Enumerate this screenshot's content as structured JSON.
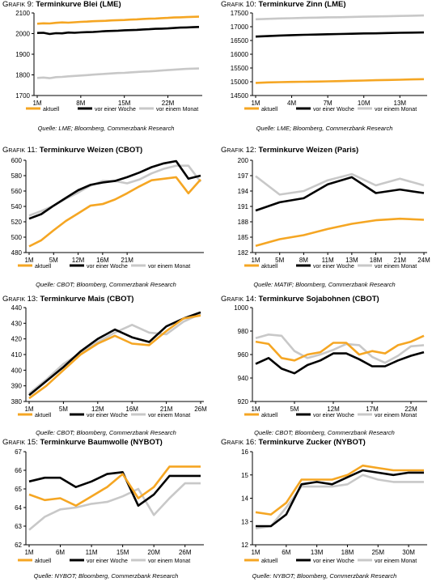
{
  "colors": {
    "aktuell": "#f5a623",
    "woche": "#000000",
    "monat": "#c8c8c8",
    "axis": "#000000"
  },
  "legend_labels": [
    "aktuell",
    "vor einer Woche",
    "vor einem Monat"
  ],
  "panels": [
    {
      "prefix": "Grafik 9:",
      "title": "Terminkurve Blei (LME)",
      "source": "Quelle: LME; Bloomberg, Commerzbank Research"
    },
    {
      "prefix": "Grafik 10:",
      "title": "Terminkurve Zinn (LME)",
      "source": "Quelle: LME; Bloomberg, Commerzbank Research"
    },
    {
      "prefix": "Grafik 11:",
      "title": "Terminkurve Weizen (CBOT)",
      "source": "Quelle: CBOT; Bloomberg, Commerzbank Research"
    },
    {
      "prefix": "Grafik 12:",
      "title": "Terminkurve Weizen (Paris)",
      "source": "Quelle: MATIF; Bloomberg, Commerzbank Research"
    },
    {
      "prefix": "Grafik 13:",
      "title": "Terminkurve Mais (CBOT)",
      "source": "Quelle: CBOT; Bloomberg, Commerzbank Research"
    },
    {
      "prefix": "Grafik 14:",
      "title": "Terminkurve Sojabohnen (CBOT)",
      "source": "Quelle: CBOT; Bloomberg, Commerzbank Research"
    },
    {
      "prefix": "Grafik 15:",
      "title": "Terminkurve Baumwolle (NYBOT)",
      "source": "Quelle: NYBOT; Bloomberg, Commerzbank Research"
    },
    {
      "prefix": "Grafik 16:",
      "title": "Terminkurve Zucker (NYBOT)",
      "source": "Quelle: NYBOT; Bloomberg, Commerzbank Research"
    }
  ],
  "chart_data": [
    {
      "type": "line",
      "title": "Terminkurve Blei (LME)",
      "ylim": [
        1700,
        2100
      ],
      "yticks": [
        1700,
        1800,
        1900,
        2000,
        2100
      ],
      "xticks": [
        "1M",
        "8M",
        "15M",
        "22M"
      ],
      "xtick_index": [
        0,
        7,
        14,
        21
      ],
      "series": [
        {
          "name": "aktuell",
          "values": [
            2048,
            2050,
            2049,
            2052,
            2054,
            2053,
            2055,
            2057,
            2058,
            2060,
            2061,
            2062,
            2064,
            2065,
            2066,
            2068,
            2069,
            2071,
            2072,
            2073,
            2075,
            2076,
            2078,
            2079,
            2080,
            2081,
            2082
          ]
        },
        {
          "name": "vor einer Woche",
          "values": [
            2003,
            2004,
            1998,
            2002,
            2001,
            2005,
            2004,
            2006,
            2007,
            2008,
            2010,
            2012,
            2013,
            2014,
            2016,
            2017,
            2018,
            2020,
            2021,
            2023,
            2024,
            2025,
            2027,
            2029,
            2030,
            2031,
            2032
          ]
        },
        {
          "name": "vor einem Monat",
          "values": [
            1785,
            1787,
            1784,
            1789,
            1790,
            1793,
            1795,
            1797,
            1799,
            1801,
            1803,
            1805,
            1807,
            1809,
            1810,
            1812,
            1814,
            1816,
            1817,
            1819,
            1821,
            1823,
            1825,
            1827,
            1829,
            1830,
            1831
          ]
        }
      ]
    },
    {
      "type": "line",
      "title": "Terminkurve Zinn (LME)",
      "ylim": [
        14500,
        17500
      ],
      "yticks": [
        14500,
        15000,
        15500,
        16000,
        16500,
        17000,
        17500
      ],
      "xticks": [
        "1M",
        "4M",
        "7M",
        "10M",
        "13M"
      ],
      "xtick_index": [
        0,
        3,
        6,
        9,
        12
      ],
      "series": [
        {
          "name": "aktuell",
          "values": [
            14960,
            14975,
            14985,
            14995,
            15000,
            15005,
            15015,
            15025,
            15035,
            15045,
            15055,
            15065,
            15075,
            15085,
            15095
          ]
        },
        {
          "name": "vor einer Woche",
          "values": [
            16640,
            16660,
            16680,
            16695,
            16705,
            16715,
            16725,
            16735,
            16745,
            16755,
            16760,
            16770,
            16780,
            16785,
            16790
          ]
        },
        {
          "name": "vor einem Monat",
          "values": [
            17270,
            17285,
            17300,
            17310,
            17320,
            17330,
            17340,
            17345,
            17355,
            17365,
            17375,
            17380,
            17390,
            17400,
            17410
          ]
        }
      ]
    },
    {
      "type": "line",
      "title": "Terminkurve Weizen (CBOT)",
      "ylim": [
        480,
        600
      ],
      "yticks": [
        480,
        500,
        520,
        540,
        560,
        580,
        600
      ],
      "xticks": [
        "1M",
        "5M",
        "12M",
        "16M",
        "21M"
      ],
      "xtick_index": [
        0,
        2,
        4,
        6,
        8
      ],
      "series": [
        {
          "name": "aktuell",
          "values": [
            488,
            496,
            509,
            521,
            531,
            541,
            543,
            549,
            557,
            566,
            574,
            576,
            578,
            557,
            575
          ]
        },
        {
          "name": "vor einer Woche",
          "values": [
            524,
            530,
            541,
            551,
            561,
            568,
            571,
            573,
            578,
            584,
            591,
            596,
            599,
            576,
            580
          ]
        },
        {
          "name": "vor einem Monat",
          "values": [
            528,
            534,
            541,
            550,
            558,
            567,
            573,
            573,
            570,
            575,
            583,
            589,
            593,
            593,
            572
          ]
        }
      ]
    },
    {
      "type": "line",
      "title": "Terminkurve Weizen (Paris)",
      "ylim": [
        182,
        200
      ],
      "yticks": [
        182,
        185,
        188,
        191,
        194,
        197,
        200
      ],
      "xticks": [
        "1M",
        "5M",
        "8M",
        "11M",
        "13M",
        "18M",
        "21M",
        "24M"
      ],
      "xtick_index": [
        0,
        1,
        2,
        3,
        4,
        5,
        6,
        7
      ],
      "series": [
        {
          "name": "aktuell",
          "values": [
            183.3,
            184.6,
            185.4,
            186.6,
            187.6,
            188.3,
            188.6,
            188.4
          ]
        },
        {
          "name": "vor einer Woche",
          "values": [
            190.2,
            191.8,
            192.6,
            195.3,
            196.7,
            193.6,
            194.3,
            193.6
          ]
        },
        {
          "name": "vor einem Monat",
          "values": [
            196.9,
            193.3,
            194.0,
            196.1,
            197.3,
            195.1,
            196.4,
            195.1
          ]
        }
      ]
    },
    {
      "type": "line",
      "title": "Terminkurve Mais (CBOT)",
      "ylim": [
        380,
        440
      ],
      "yticks": [
        380,
        390,
        400,
        410,
        420,
        430,
        440
      ],
      "xticks": [
        "1M",
        "5M",
        "12M",
        "16M",
        "21M",
        "26M"
      ],
      "xtick_index": [
        0,
        2,
        4,
        6,
        8,
        10
      ],
      "series": [
        {
          "name": "aktuell",
          "values": [
            382,
            390,
            400,
            410,
            417,
            422,
            417,
            416,
            425,
            433,
            435
          ]
        },
        {
          "name": "vor einer Woche",
          "values": [
            384,
            393,
            402,
            412,
            420,
            426,
            421,
            418,
            428,
            433,
            437
          ]
        },
        {
          "name": "vor einem Monat",
          "values": [
            385,
            394,
            404,
            411,
            418,
            424,
            429,
            424,
            423,
            431,
            436
          ]
        }
      ]
    },
    {
      "type": "line",
      "title": "Terminkurve Sojabohnen (CBOT)",
      "ylim": [
        920,
        1000
      ],
      "yticks": [
        920,
        940,
        960,
        980,
        1000
      ],
      "xticks": [
        "1M",
        "5M",
        "12M",
        "17M",
        "22M"
      ],
      "xtick_index": [
        0,
        3,
        6,
        9,
        12
      ],
      "series": [
        {
          "name": "aktuell",
          "values": [
            971,
            969,
            957,
            955,
            960,
            962,
            970,
            970,
            960,
            963,
            961,
            968,
            971,
            976
          ]
        },
        {
          "name": "vor einer Woche",
          "values": [
            952,
            957,
            948,
            944,
            951,
            955,
            961,
            961,
            956,
            950,
            950,
            955,
            959,
            962
          ]
        },
        {
          "name": "vor einem Monat",
          "values": [
            974,
            977,
            976,
            963,
            957,
            960,
            964,
            969,
            968,
            958,
            953,
            959,
            967,
            968
          ]
        }
      ]
    },
    {
      "type": "line",
      "title": "Terminkurve Baumwolle (NYBOT)",
      "ylim": [
        62,
        67
      ],
      "yticks": [
        62,
        63,
        64,
        65,
        66,
        67
      ],
      "xticks": [
        "1M",
        "6M",
        "11M",
        "15M",
        "20M",
        "26M"
      ],
      "xtick_index": [
        0,
        2,
        4,
        6,
        8,
        10
      ],
      "series": [
        {
          "name": "aktuell",
          "values": [
            64.7,
            64.4,
            64.5,
            64.1,
            64.6,
            65.1,
            65.8,
            64.5,
            65.1,
            66.2,
            66.2,
            66.2
          ]
        },
        {
          "name": "vor einer Woche",
          "values": [
            65.4,
            65.6,
            65.6,
            65.1,
            65.4,
            65.8,
            65.9,
            64.1,
            64.7,
            65.7,
            65.7,
            65.7
          ]
        },
        {
          "name": "vor einem Monat",
          "values": [
            62.8,
            63.5,
            63.9,
            64.0,
            64.2,
            64.3,
            64.6,
            65.0,
            63.6,
            64.5,
            65.3,
            65.3
          ]
        }
      ]
    },
    {
      "type": "line",
      "title": "Terminkurve Zucker (NYBOT)",
      "ylim": [
        12,
        16
      ],
      "yticks": [
        12,
        13,
        14,
        15,
        16
      ],
      "xticks": [
        "1M",
        "6M",
        "13M",
        "18M",
        "25M",
        "30M"
      ],
      "xtick_index": [
        0,
        2,
        4,
        6,
        8,
        10
      ],
      "series": [
        {
          "name": "aktuell",
          "values": [
            13.4,
            13.3,
            13.8,
            14.8,
            14.8,
            14.8,
            15.0,
            15.4,
            15.3,
            15.2,
            15.2,
            15.2
          ]
        },
        {
          "name": "vor einer Woche",
          "values": [
            12.8,
            12.8,
            13.3,
            14.6,
            14.7,
            14.6,
            14.9,
            15.2,
            15.1,
            15.0,
            15.1,
            15.1
          ]
        },
        {
          "name": "vor einem Monat",
          "values": [
            12.7,
            12.8,
            13.6,
            14.5,
            14.5,
            14.5,
            14.6,
            15.0,
            14.8,
            14.7,
            14.7,
            14.7
          ]
        }
      ]
    }
  ]
}
